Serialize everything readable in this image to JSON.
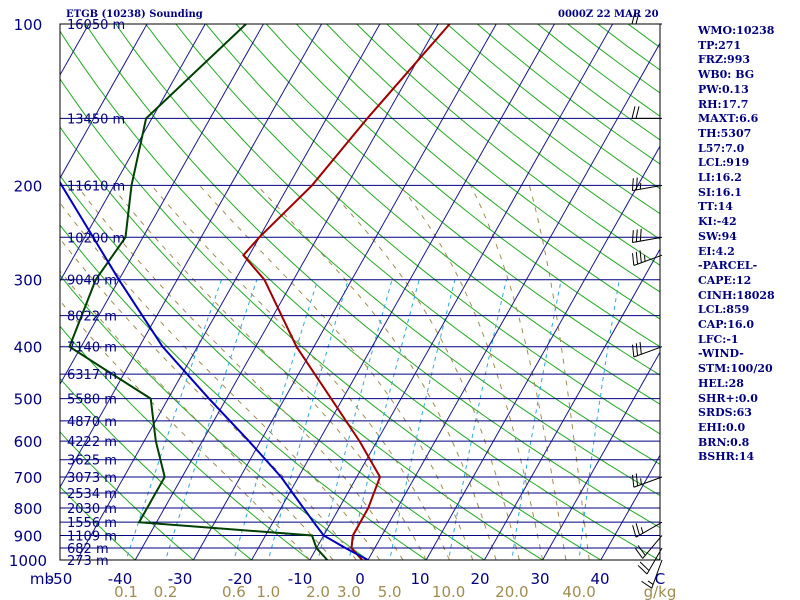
{
  "header": {
    "station_title": "ETGB (10238) Sounding",
    "time": "0000Z 22 MAR 20"
  },
  "stats": [
    "WMO:10238",
    "TP:271",
    "FRZ:993",
    "WB0: BG",
    "PW:0.13",
    "RH:17.7",
    "MAXT:6.6",
    "TH:5307",
    "L57:7.0",
    "LCL:919",
    "LI:16.2",
    "SI:16.1",
    "TT:14",
    "KI:-42",
    "SW:94",
    "EI:4.2",
    "-PARCEL-",
    "CAPE:12",
    "CINH:18028",
    "LCL:859",
    "CAP:16.0",
    "LFC:-1",
    "-WIND-",
    "STM:100/20",
    "HEL:28",
    "SHR+:0.0",
    "SRDS:63",
    "EHI:0.0",
    "BRN:0.8",
    "BSHR:14"
  ],
  "chart_data": {
    "type": "line",
    "title": "ETGB (10238) Sounding",
    "xlabel": "C",
    "ylabel": "mb",
    "x_unit": "C",
    "y_unit": "mb",
    "xlim": [
      -50,
      50
    ],
    "ylim": [
      1000,
      100
    ],
    "y_scale": "log",
    "grid": true,
    "x_ticks": [
      -50,
      -40,
      -30,
      -20,
      -10,
      0,
      10,
      20,
      30,
      40
    ],
    "x_tick_labels": [
      "-50",
      "-40",
      "-30",
      "-20",
      "-10",
      "0",
      "10",
      "20",
      "30",
      "40",
      "C"
    ],
    "y_ticks": [
      100,
      200,
      300,
      400,
      500,
      600,
      700,
      800,
      900,
      1000
    ],
    "y_tick_labels": [
      "100",
      "200",
      "300",
      "400",
      "500",
      "600",
      "700",
      "800",
      "900",
      "1000",
      "mb"
    ],
    "mixing_ratio_labels": [
      "0.1",
      "0.2",
      "0.6",
      "1.0",
      "2.0",
      "3.0",
      "5.0",
      "10.0",
      "20.0",
      "40.0",
      "g/kg"
    ],
    "mixing_ratio_values": [
      0.1,
      0.2,
      0.6,
      1.0,
      2.0,
      3.0,
      5.0,
      10.0,
      20.0,
      40.0
    ],
    "height_levels": [
      {
        "p": 100,
        "label": "16050 m"
      },
      {
        "p": 150,
        "label": "13450 m"
      },
      {
        "p": 200,
        "label": "11610 m"
      },
      {
        "p": 250,
        "label": "10200 m"
      },
      {
        "p": 300,
        "label": "9040 m"
      },
      {
        "p": 350,
        "label": "8022 m"
      },
      {
        "p": 400,
        "label": "7140 m"
      },
      {
        "p": 450,
        "label": "6317 m"
      },
      {
        "p": 500,
        "label": "5580 m"
      },
      {
        "p": 550,
        "label": "4870 m"
      },
      {
        "p": 600,
        "label": "4222 m"
      },
      {
        "p": 650,
        "label": "3625 m"
      },
      {
        "p": 700,
        "label": "3073 m"
      },
      {
        "p": 750,
        "label": "2534 m"
      },
      {
        "p": 800,
        "label": "2030 m"
      },
      {
        "p": 850,
        "label": "1556 m"
      },
      {
        "p": 900,
        "label": "1109 m"
      },
      {
        "p": 950,
        "label": "682 m"
      },
      {
        "p": 1000,
        "label": "273 m"
      }
    ],
    "series": [
      {
        "name": "Temperature",
        "color": "#a00000",
        "points": [
          {
            "p": 1000,
            "t": -1
          },
          {
            "p": 950,
            "t": -4
          },
          {
            "p": 900,
            "t": -5
          },
          {
            "p": 850,
            "t": -5
          },
          {
            "p": 800,
            "t": -5
          },
          {
            "p": 700,
            "t": -6
          },
          {
            "p": 600,
            "t": -13
          },
          {
            "p": 500,
            "t": -22
          },
          {
            "p": 400,
            "t": -33
          },
          {
            "p": 300,
            "t": -45
          },
          {
            "p": 270,
            "t": -51
          },
          {
            "p": 250,
            "t": -50
          },
          {
            "p": 200,
            "t": -46
          },
          {
            "p": 150,
            "t": -43
          },
          {
            "p": 100,
            "t": -38
          }
        ]
      },
      {
        "name": "Dewpoint",
        "color": "#004000",
        "points": [
          {
            "p": 1000,
            "t": -7
          },
          {
            "p": 950,
            "t": -10
          },
          {
            "p": 900,
            "t": -12
          },
          {
            "p": 850,
            "t": -43
          },
          {
            "p": 700,
            "t": -43
          },
          {
            "p": 600,
            "t": -48
          },
          {
            "p": 500,
            "t": -53
          },
          {
            "p": 450,
            "t": -62
          },
          {
            "p": 400,
            "t": -72
          },
          {
            "p": 300,
            "t": -74
          },
          {
            "p": 250,
            "t": -73
          },
          {
            "p": 200,
            "t": -77
          },
          {
            "p": 150,
            "t": -81
          },
          {
            "p": 100,
            "t": -73
          }
        ]
      },
      {
        "name": "Parcel",
        "color": "#0000c0",
        "points": [
          {
            "p": 1000,
            "t": 0
          },
          {
            "p": 950,
            "t": -5
          },
          {
            "p": 900,
            "t": -10
          },
          {
            "p": 850,
            "t": -13
          },
          {
            "p": 700,
            "t": -23
          },
          {
            "p": 600,
            "t": -32
          },
          {
            "p": 500,
            "t": -43
          },
          {
            "p": 400,
            "t": -56
          },
          {
            "p": 300,
            "t": -70
          },
          {
            "p": 200,
            "t": -89
          },
          {
            "p": 150,
            "t": -102
          },
          {
            "p": 100,
            "t": -123
          }
        ]
      }
    ],
    "wind_barbs": [
      {
        "p": 1000,
        "dir": 200,
        "kt": 15
      },
      {
        "p": 950,
        "dir": 210,
        "kt": 20
      },
      {
        "p": 900,
        "dir": 220,
        "kt": 20
      },
      {
        "p": 850,
        "dir": 240,
        "kt": 25
      },
      {
        "p": 700,
        "dir": 250,
        "kt": 25
      },
      {
        "p": 400,
        "dir": 250,
        "kt": 30
      },
      {
        "p": 270,
        "dir": 250,
        "kt": 35
      },
      {
        "p": 250,
        "dir": 260,
        "kt": 30
      },
      {
        "p": 200,
        "dir": 260,
        "kt": 25
      },
      {
        "p": 150,
        "dir": 270,
        "kt": 20
      },
      {
        "p": 100,
        "dir": 270,
        "kt": 20
      }
    ]
  }
}
